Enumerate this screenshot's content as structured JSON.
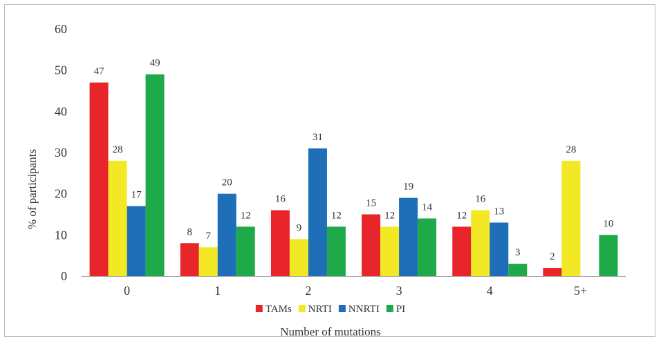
{
  "chart_data": {
    "type": "bar",
    "title": "",
    "xlabel": "Number of mutations",
    "ylabel": "% of participants",
    "categories": [
      "0",
      "1",
      "2",
      "3",
      "4",
      "5+"
    ],
    "ylim": [
      0,
      60
    ],
    "yticks": [
      0,
      10,
      20,
      30,
      40,
      50,
      60
    ],
    "grid": false,
    "legend": "bottom",
    "series": [
      {
        "name": "TAMs",
        "color": "#e8252a",
        "values": [
          47,
          8,
          16,
          15,
          12,
          2
        ]
      },
      {
        "name": "NRTI",
        "color": "#f2e824",
        "values": [
          28,
          7,
          9,
          12,
          16,
          28
        ]
      },
      {
        "name": "NNRTI",
        "color": "#1e6fb8",
        "values": [
          17,
          20,
          31,
          19,
          13,
          null
        ]
      },
      {
        "name": "PI",
        "color": "#1faa4a",
        "values": [
          49,
          12,
          12,
          14,
          3,
          10
        ]
      }
    ]
  }
}
